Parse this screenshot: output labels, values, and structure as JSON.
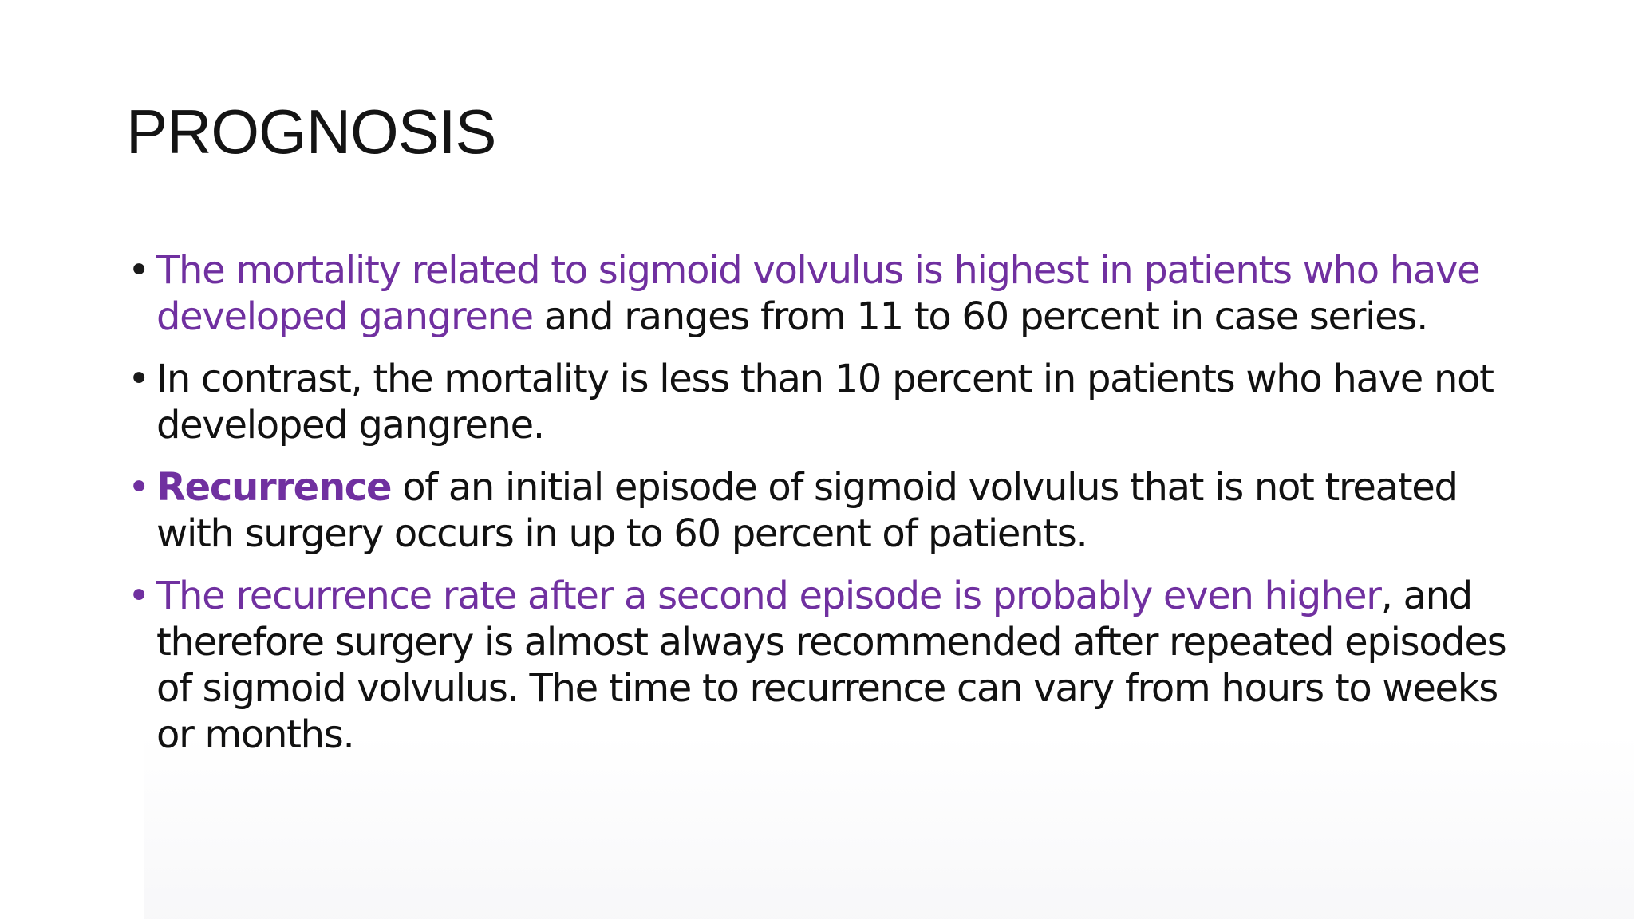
{
  "slide": {
    "title": "PROGNOSIS",
    "bullet_glyph": "•",
    "colors": {
      "accent": "#7030a0",
      "text": "#111111",
      "background": "#ffffff"
    },
    "bullets": [
      {
        "segments": [
          {
            "text": " The mortality related to sigmoid volvulus is highest in patients who have developed gangrene",
            "style": "purple"
          },
          {
            "text": " and ranges from 11 to 60 percent in case series.",
            "style": "dark"
          }
        ]
      },
      {
        "segments": [
          {
            "text": "In contrast, the mortality is less than 10 percent in patients who have not developed gangrene.",
            "style": "dark"
          }
        ]
      },
      {
        "segments": [
          {
            "text": "Recurrence",
            "style": "purple-bold"
          },
          {
            "text": " of an initial episode of sigmoid volvulus that is not treated with surgery occurs in up to 60 percent of patients.",
            "style": "dark"
          }
        ]
      },
      {
        "segments": [
          {
            "text": "The recurrence rate after a second episode is probably even higher",
            "style": "purple"
          },
          {
            "text": ", and therefore surgery is almost always recommended after repeated episodes of sigmoid volvulus. The time to recurrence can vary from hours to weeks or months.",
            "style": "dark"
          }
        ]
      }
    ]
  }
}
